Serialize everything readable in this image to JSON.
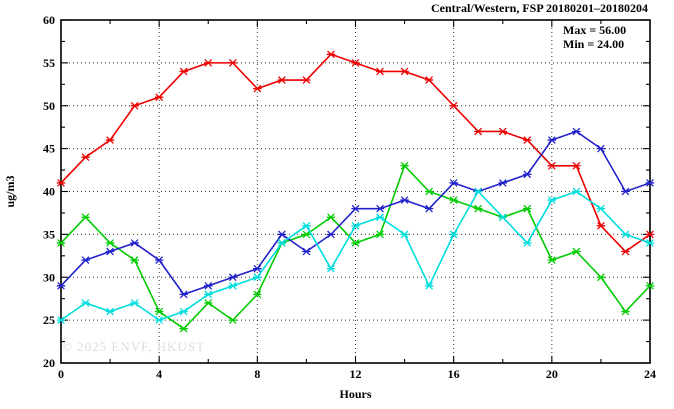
{
  "title": "Central/Western, FSP 20180201–20180204",
  "legend": {
    "max_label": "Max = 56.00",
    "min_label": "Min = 24.00"
  },
  "watermark": "© 2025  ENVF, HKUST",
  "chart_data": {
    "type": "line",
    "title": "Central/Western, FSP 20180201–20180204",
    "xlabel": "Hours",
    "ylabel": "ug/m3",
    "xlim": [
      0,
      24
    ],
    "ylim": [
      20,
      60
    ],
    "xticks_major": [
      0,
      4,
      8,
      12,
      16,
      20,
      24
    ],
    "xticks_minor": [
      2,
      6,
      10,
      14,
      18,
      22
    ],
    "yticks_major": [
      20,
      25,
      30,
      35,
      40,
      45,
      50,
      55,
      60
    ],
    "yticks_minor": [
      22.5,
      27.5,
      32.5,
      37.5,
      42.5,
      47.5,
      52.5,
      57.5
    ],
    "grid_vertical_at": [
      4,
      8,
      12,
      16,
      20
    ],
    "grid_horizontal_at": [
      25,
      30,
      35,
      40,
      45,
      50,
      55
    ],
    "grid_style": "dotted",
    "legend_position": "top-right-inside",
    "max": 56.0,
    "min": 24.0,
    "x": [
      0,
      1,
      2,
      3,
      4,
      5,
      6,
      7,
      8,
      9,
      10,
      11,
      12,
      13,
      14,
      15,
      16,
      17,
      18,
      19,
      20,
      21,
      22,
      23,
      24
    ],
    "series": [
      {
        "name": "red",
        "color": "#ee0000",
        "marker": "asterisk",
        "values": [
          41,
          44,
          46,
          50,
          51,
          54,
          55,
          55,
          52,
          53,
          53,
          56,
          55,
          54,
          54,
          53,
          50,
          47,
          47,
          46,
          43,
          43,
          36,
          33,
          35
        ]
      },
      {
        "name": "green",
        "color": "#00cc00",
        "marker": "asterisk",
        "values": [
          34,
          37,
          34,
          32,
          26,
          24,
          27,
          25,
          28,
          34,
          35,
          37,
          34,
          35,
          43,
          40,
          39,
          38,
          37,
          38,
          32,
          33,
          30,
          26,
          29
        ]
      },
      {
        "name": "blue",
        "color": "#2222cc",
        "marker": "asterisk",
        "values": [
          29,
          32,
          33,
          34,
          32,
          28,
          29,
          30,
          31,
          35,
          33,
          35,
          38,
          38,
          39,
          38,
          41,
          40,
          41,
          42,
          46,
          47,
          45,
          40,
          41
        ]
      },
      {
        "name": "cyan",
        "color": "#00dddd",
        "marker": "asterisk",
        "values": [
          25,
          27,
          26,
          27,
          25,
          26,
          28,
          29,
          30,
          34,
          36,
          31,
          36,
          37,
          35,
          29,
          35,
          40,
          37,
          34,
          39,
          40,
          38,
          35,
          34
        ]
      }
    ]
  }
}
